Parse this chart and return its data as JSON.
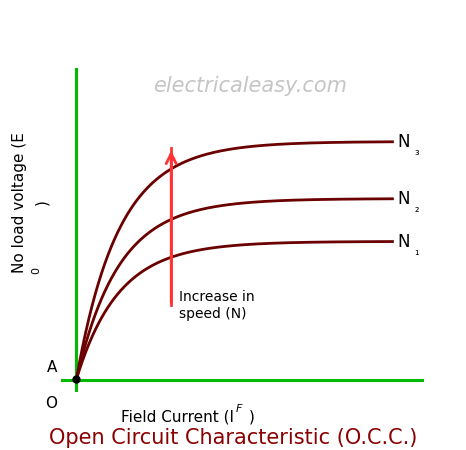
{
  "title": "Open Circuit Characteristic (O.C.C.)",
  "title_color": "#8B0000",
  "title_fontsize": 15,
  "watermark": "electricaleasy.com",
  "watermark_color": "#bbbbbb",
  "watermark_fontsize": 15,
  "curve_color": "#6B0000",
  "curve_linewidth": 2.0,
  "axis_color": "#00bb00",
  "axis_linewidth": 2.2,
  "bg_color": "#ffffff",
  "curves": [
    {
      "label": "N₁",
      "scale": 0.58
    },
    {
      "label": "N₂",
      "scale": 0.76
    },
    {
      "label": "N₃",
      "scale": 1.0
    }
  ],
  "A_label": "A",
  "O_label": "O",
  "arrow_color": "#ff3333",
  "arrow_text": "Increase in\nspeed (N)",
  "arrow_text_fontsize": 10,
  "xlabel_main": "Field Current (I",
  "xlabel_sub": "F",
  "xlabel_end": ")",
  "ylabel_main": "No load voltage (E",
  "ylabel_sub": "0",
  "ylabel_end": ")",
  "label_fontsize": 11,
  "sub_fontsize": 8
}
